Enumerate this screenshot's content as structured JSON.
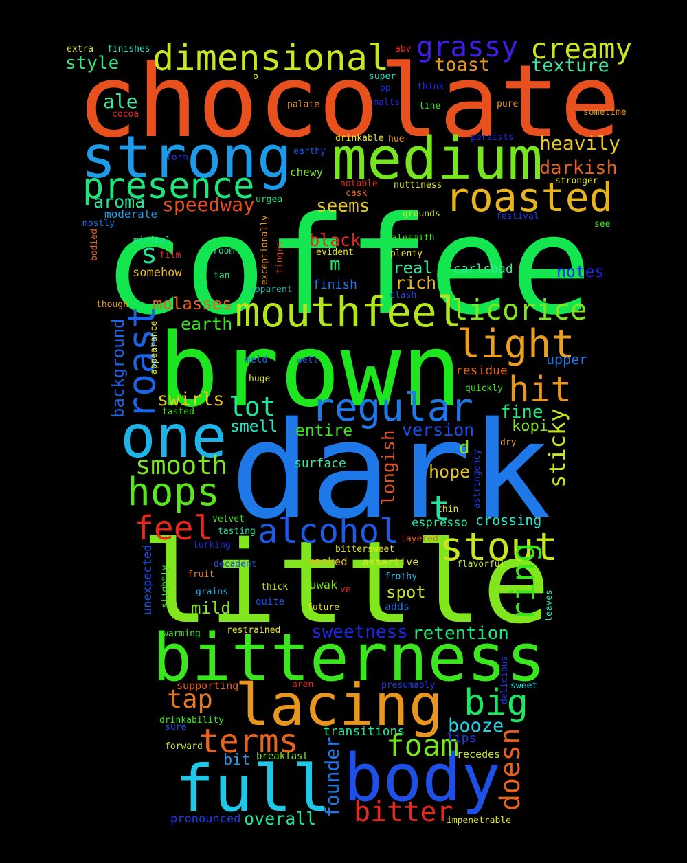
{
  "words": [
    {
      "text": "chocolate",
      "color": "#e8501e"
    },
    {
      "text": "coffee",
      "color": "#14e650"
    },
    {
      "text": "dark",
      "color": "#1e78e8"
    },
    {
      "text": "little",
      "color": "#82e61e"
    },
    {
      "text": "brown",
      "color": "#1ee61e"
    },
    {
      "text": "bitterness",
      "color": "#3ce61e"
    },
    {
      "text": "full",
      "color": "#1ec8e6"
    },
    {
      "text": "body",
      "color": "#1e50e8"
    },
    {
      "text": "lacing",
      "color": "#e8961e"
    },
    {
      "text": "strong",
      "color": "#1e9be8"
    },
    {
      "text": "medium",
      "color": "#78e61e"
    },
    {
      "text": "one",
      "color": "#1eb4e8"
    },
    {
      "text": "mouthfeel",
      "color": "#b4e61e"
    },
    {
      "text": "dimensional",
      "color": "#c8e61e"
    },
    {
      "text": "presence",
      "color": "#1ee67d"
    },
    {
      "text": "roasted",
      "color": "#e8b41e"
    },
    {
      "text": "regular",
      "color": "#1e78e8"
    },
    {
      "text": "light",
      "color": "#e8a01e"
    },
    {
      "text": "hit",
      "color": "#e8961e"
    },
    {
      "text": "hops",
      "color": "#5ae61e"
    },
    {
      "text": "smooth",
      "color": "#82e61e"
    },
    {
      "text": "stout",
      "color": "#c8e61e"
    },
    {
      "text": "alcohol",
      "color": "#1e5ae8"
    },
    {
      "text": "feel",
      "color": "#e8281e"
    },
    {
      "text": "ring",
      "color": "#3ce61e"
    },
    {
      "text": "terms",
      "color": "#e8641e"
    },
    {
      "text": "big",
      "color": "#1ee664"
    },
    {
      "text": "tap",
      "color": "#e8781e"
    },
    {
      "text": "foam",
      "color": "#78e61e"
    },
    {
      "text": "booze",
      "color": "#1ed2e6"
    },
    {
      "text": "bitter",
      "color": "#e8281e"
    },
    {
      "text": "doesn",
      "color": "#e8641e"
    },
    {
      "text": "founder",
      "color": "#1e78e8"
    },
    {
      "text": "overall",
      "color": "#1ee6a0"
    },
    {
      "text": "pronounced",
      "color": "#1e3ce8"
    },
    {
      "text": "bit",
      "color": "#1e9be8"
    },
    {
      "text": "breakfast",
      "color": "#82e61e"
    },
    {
      "text": "recedes",
      "color": "#c8e61e"
    },
    {
      "text": "lips",
      "color": "#1e3ce8"
    },
    {
      "text": "transitions",
      "color": "#1ee6a0"
    },
    {
      "text": "impenetrable",
      "color": "#e6e61e"
    },
    {
      "text": "forward",
      "color": "#c8e61e"
    },
    {
      "text": "sure",
      "color": "#1e50e8"
    },
    {
      "text": "drinkability",
      "color": "#3ce61e"
    },
    {
      "text": "supporting",
      "color": "#e8641e"
    },
    {
      "text": "aren",
      "color": "#e8281e"
    },
    {
      "text": "presumably",
      "color": "#1e3ce8"
    },
    {
      "text": "sweet",
      "color": "#1ee6e6"
    },
    {
      "text": "delicious",
      "color": "#1e3ce8"
    },
    {
      "text": "leaves",
      "color": "#1ee6b4"
    },
    {
      "text": "retention",
      "color": "#1ee678"
    },
    {
      "text": "sweetness",
      "color": "#1e28e8"
    },
    {
      "text": "restrained",
      "color": "#e6e61e"
    },
    {
      "text": "warming",
      "color": "#3ce61e"
    },
    {
      "text": "unexpected",
      "color": "#1e50e8"
    },
    {
      "text": "slightly",
      "color": "#3ce61e"
    },
    {
      "text": "mild",
      "color": "#82e61e"
    },
    {
      "text": "grains",
      "color": "#1eb4e8"
    },
    {
      "text": "quite",
      "color": "#1e50e8"
    },
    {
      "text": "future",
      "color": "#e6e61e"
    },
    {
      "text": "adds",
      "color": "#1e78e8"
    },
    {
      "text": "spot",
      "color": "#c8e61e"
    },
    {
      "text": "luwak",
      "color": "#78e61e"
    },
    {
      "text": "ve",
      "color": "#e8281e"
    },
    {
      "text": "thick",
      "color": "#c8e61e"
    },
    {
      "text": "frothy",
      "color": "#1ebee6"
    },
    {
      "text": "assertive",
      "color": "#e6e61e"
    },
    {
      "text": "masked",
      "color": "#e8b41e"
    },
    {
      "text": "decadent",
      "color": "#1e50e8"
    },
    {
      "text": "fruit",
      "color": "#e8781e"
    },
    {
      "text": "flavorful",
      "color": "#c8e61e"
    },
    {
      "text": "bittersweet",
      "color": "#e6e61e"
    },
    {
      "text": "layered",
      "color": "#e8641e"
    },
    {
      "text": "lurking",
      "color": "#1e28e8"
    },
    {
      "text": "tasting",
      "color": "#1ee6a0"
    },
    {
      "text": "velvet",
      "color": "#3ce61e"
    },
    {
      "text": "espresso",
      "color": "#1ee6a0"
    },
    {
      "text": "crossing",
      "color": "#1ee6c8"
    },
    {
      "text": "thin",
      "color": "#e6e61e"
    },
    {
      "text": "t",
      "color": "#1ee6a0"
    },
    {
      "text": "astringency",
      "color": "#1e3ce8"
    },
    {
      "text": "hope",
      "color": "#e6c81e"
    },
    {
      "text": "d",
      "color": "#82e61e"
    },
    {
      "text": "surface",
      "color": "#3ce6a0"
    },
    {
      "text": "longish",
      "color": "#e8501e"
    },
    {
      "text": "version",
      "color": "#1e50e8"
    },
    {
      "text": "entire",
      "color": "#3ce61e"
    },
    {
      "text": "smell",
      "color": "#1ee6c8"
    },
    {
      "text": "lot",
      "color": "#1ee6a0"
    },
    {
      "text": "swirls",
      "color": "#e6c81e"
    },
    {
      "text": "fine",
      "color": "#1ee678"
    },
    {
      "text": "kopi",
      "color": "#82e61e"
    },
    {
      "text": "sticky",
      "color": "#c8e61e"
    },
    {
      "text": "dry",
      "color": "#e8961e"
    },
    {
      "text": "roast",
      "color": "#1e64e8"
    },
    {
      "text": "background",
      "color": "#1e64e8"
    },
    {
      "text": "appearance",
      "color": "#e6e61e"
    },
    {
      "text": "tasted",
      "color": "#3ce61e"
    },
    {
      "text": "huge",
      "color": "#e6e61e"
    },
    {
      "text": "meld",
      "color": "#1e64e8"
    },
    {
      "text": "well",
      "color": "#1e50e8"
    },
    {
      "text": "earth",
      "color": "#3ce61e"
    },
    {
      "text": "molasses",
      "color": "#e8641e"
    },
    {
      "text": "though",
      "color": "#e8961e"
    },
    {
      "text": "upper",
      "color": "#1e78e8"
    },
    {
      "text": "residue",
      "color": "#e8641e"
    },
    {
      "text": "quickly",
      "color": "#3ce61e"
    },
    {
      "text": "licorice",
      "color": "#82e61e"
    },
    {
      "text": "notes",
      "color": "#1e28e8"
    },
    {
      "text": "carlsbad",
      "color": "#3ce6a0"
    },
    {
      "text": "rich",
      "color": "#e8b41e"
    },
    {
      "text": "real",
      "color": "#3ce6a0"
    },
    {
      "text": "finish",
      "color": "#1e78e8"
    },
    {
      "text": "clash",
      "color": "#1e50e8"
    },
    {
      "text": "apparent",
      "color": "#1eb4a0"
    },
    {
      "text": "somehow",
      "color": "#e8b41e"
    },
    {
      "text": "tan",
      "color": "#1ee6a0"
    },
    {
      "text": "m",
      "color": "#1ee678"
    },
    {
      "text": "evident",
      "color": "#e6e61e"
    },
    {
      "text": "plenty",
      "color": "#e6e61e"
    },
    {
      "text": "alesmith",
      "color": "#3ce61e"
    },
    {
      "text": "black",
      "color": "#e8281e"
    },
    {
      "text": "exceptionally",
      "color": "#e8961e"
    },
    {
      "text": "tinges",
      "color": "#e8501e"
    },
    {
      "text": "room",
      "color": "#1ee6a0"
    },
    {
      "text": "film",
      "color": "#e8281e"
    },
    {
      "text": "minimal",
      "color": "#1ee6a0"
    },
    {
      "text": "bodied",
      "color": "#e8641e"
    },
    {
      "text": "s",
      "color": "#1ee6a0"
    },
    {
      "text": "mostly",
      "color": "#1e78e8"
    },
    {
      "text": "moderate",
      "color": "#1ea0e8"
    },
    {
      "text": "aroma",
      "color": "#1ee6a0"
    },
    {
      "text": "speedway",
      "color": "#e8501e"
    },
    {
      "text": "urgea",
      "color": "#1ee678"
    },
    {
      "text": "seems",
      "color": "#e6c81e"
    },
    {
      "text": "grounds",
      "color": "#c8e61e"
    },
    {
      "text": "festival",
      "color": "#1e3ce8"
    },
    {
      "text": "see",
      "color": "#3ce61e"
    },
    {
      "text": "cask",
      "color": "#e8641e"
    },
    {
      "text": "notable",
      "color": "#e8281e"
    },
    {
      "text": "nuttiness",
      "color": "#e6e61e"
    },
    {
      "text": "stronger",
      "color": "#e6e61e"
    },
    {
      "text": "darkish",
      "color": "#e8641e"
    },
    {
      "text": "heavily",
      "color": "#e6c81e"
    },
    {
      "text": "chewy",
      "color": "#82e61e"
    },
    {
      "text": "hue",
      "color": "#e8961e"
    },
    {
      "text": "drinkable",
      "color": "#e6e61e"
    },
    {
      "text": "persists",
      "color": "#1e28e8"
    },
    {
      "text": "earthy",
      "color": "#1e50e8"
    },
    {
      "text": "form",
      "color": "#1e3ce8"
    },
    {
      "text": "ale",
      "color": "#3ce6a0"
    },
    {
      "text": "cocoa",
      "color": "#e8281e"
    },
    {
      "text": "palate",
      "color": "#e8961e"
    },
    {
      "text": "malts",
      "color": "#1e28e8"
    },
    {
      "text": "line",
      "color": "#3ce61e"
    },
    {
      "text": "pure",
      "color": "#e8961e"
    },
    {
      "text": "sometime",
      "color": "#e8961e"
    },
    {
      "text": "think",
      "color": "#1e28e8"
    },
    {
      "text": "pp",
      "color": "#1e28e8"
    },
    {
      "text": "super",
      "color": "#1ee6c8"
    },
    {
      "text": "o",
      "color": "#e6e61e"
    },
    {
      "text": "texture",
      "color": "#3ce6a0"
    },
    {
      "text": "toast",
      "color": "#e8961e"
    },
    {
      "text": "abv",
      "color": "#e8281e"
    },
    {
      "text": "grassy",
      "color": "#3c1ee8"
    },
    {
      "text": "creamy",
      "color": "#c8e61e"
    },
    {
      "text": "style",
      "color": "#3ce67d"
    },
    {
      "text": "extra",
      "color": "#e6e61e"
    },
    {
      "text": "finishes",
      "color": "#1ee6c8"
    }
  ]
}
